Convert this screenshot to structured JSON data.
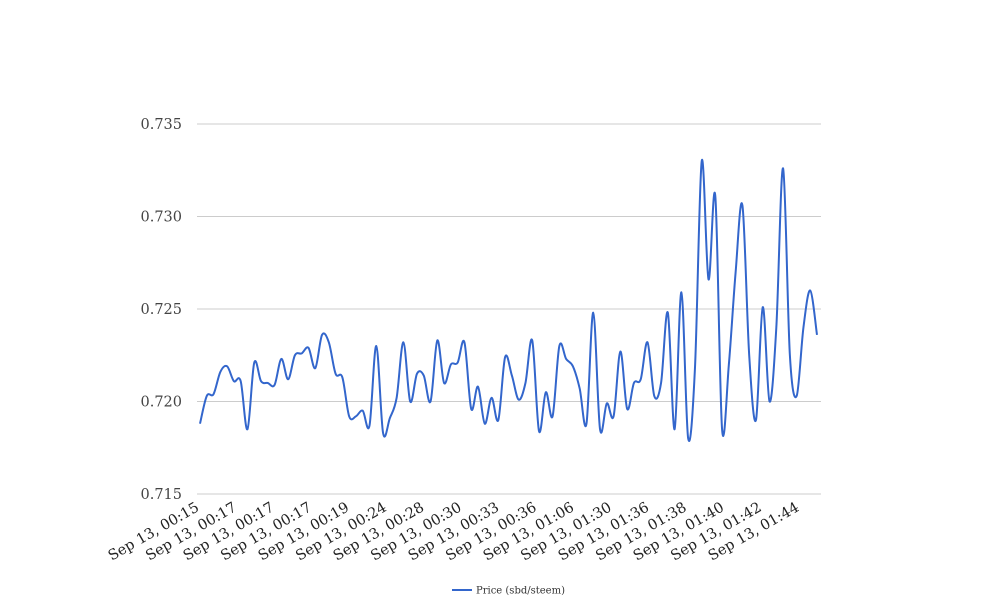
{
  "chart_data": {
    "type": "line",
    "title": "",
    "xlabel": "",
    "ylabel": "",
    "ylim": [
      0.715,
      0.735
    ],
    "y_ticks": [
      "0.735",
      "0.730",
      "0.725",
      "0.720",
      "0.715"
    ],
    "y_tick_values": [
      0.735,
      0.73,
      0.725,
      0.72,
      0.715
    ],
    "x_tick_labels": [
      "Sep 13, 00:15",
      "Sep 13, 00:17",
      "Sep 13, 00:17",
      "Sep 13, 00:17",
      "Sep 13, 00:19",
      "Sep 13, 00:24",
      "Sep 13, 00:28",
      "Sep 13, 00:30",
      "Sep 13, 00:33",
      "Sep 13, 00:36",
      "Sep 13, 01:06",
      "Sep 13, 01:30",
      "Sep 13, 01:36",
      "Sep 13, 01:38",
      "Sep 13, 01:40",
      "Sep 13, 01:42",
      "Sep 13, 01:44"
    ],
    "grid": true,
    "legend_position": "bottom",
    "series": [
      {
        "name": "Price (sbd/steem)",
        "color": "#3366cc",
        "values": [
          0.7188,
          0.7203,
          0.7204,
          0.7216,
          0.7219,
          0.7211,
          0.7211,
          0.7185,
          0.7221,
          0.7211,
          0.721,
          0.7209,
          0.7223,
          0.7212,
          0.7225,
          0.7226,
          0.7229,
          0.7218,
          0.7236,
          0.7232,
          0.7215,
          0.7213,
          0.7192,
          0.7192,
          0.7195,
          0.7187,
          0.723,
          0.7183,
          0.7191,
          0.7202,
          0.7232,
          0.72,
          0.7215,
          0.7214,
          0.72,
          0.7233,
          0.721,
          0.722,
          0.7221,
          0.7232,
          0.7196,
          0.7208,
          0.7188,
          0.7202,
          0.719,
          0.7224,
          0.7214,
          0.7201,
          0.721,
          0.7233,
          0.7184,
          0.7205,
          0.7192,
          0.723,
          0.7223,
          0.7219,
          0.7207,
          0.7188,
          0.7248,
          0.7185,
          0.7199,
          0.7192,
          0.7227,
          0.7196,
          0.721,
          0.7212,
          0.7232,
          0.7203,
          0.721,
          0.7248,
          0.7185,
          0.7259,
          0.718,
          0.7218,
          0.733,
          0.7266,
          0.7311,
          0.7185,
          0.722,
          0.727,
          0.7306,
          0.7225,
          0.719,
          0.7251,
          0.72,
          0.724,
          0.7326,
          0.7225,
          0.7203,
          0.724,
          0.726,
          0.7236
        ]
      }
    ]
  }
}
